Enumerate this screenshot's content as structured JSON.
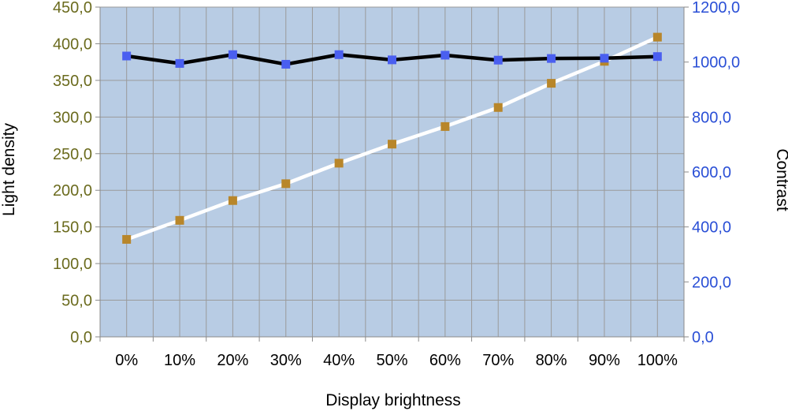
{
  "chart_data": {
    "type": "line",
    "xlabel": "Display brightness",
    "ylabel_left": "Light density",
    "ylabel_right": "Contrast",
    "categories": [
      "0%",
      "10%",
      "20%",
      "30%",
      "40%",
      "50%",
      "60%",
      "70%",
      "80%",
      "90%",
      "100%"
    ],
    "y_left": {
      "range": [
        0,
        450
      ],
      "ticks": [
        0,
        50,
        100,
        150,
        200,
        250,
        300,
        350,
        400,
        450
      ],
      "tick_labels": [
        "0,0",
        "50,0",
        "100,0",
        "150,0",
        "200,0",
        "250,0",
        "300,0",
        "350,0",
        "400,0",
        "450,0"
      ]
    },
    "y_right": {
      "range": [
        0,
        1200
      ],
      "ticks": [
        0,
        200,
        400,
        600,
        800,
        1000,
        1200
      ],
      "tick_labels": [
        "0,0",
        "200,0",
        "400,0",
        "600,0",
        "800,0",
        "1000,0",
        "1200,0"
      ]
    },
    "series": [
      {
        "axis": "left",
        "line_color": "#ffffff",
        "marker_color": "#b8862a",
        "values": [
          133,
          159,
          186,
          209,
          237,
          263,
          287,
          313,
          346,
          376,
          409
        ]
      },
      {
        "axis": "right",
        "line_color": "#000000",
        "marker_color": "#4a5ff0",
        "values": [
          1022,
          995,
          1027,
          992,
          1027,
          1008,
          1025,
          1007,
          1013,
          1014,
          1020
        ]
      }
    ],
    "grid": true,
    "colors": {
      "plot_background": "#b8cce4",
      "gridline": "#9a9a9a",
      "left_tick_color": "#6b6b1e",
      "right_tick_color": "#2a4fd6"
    }
  }
}
